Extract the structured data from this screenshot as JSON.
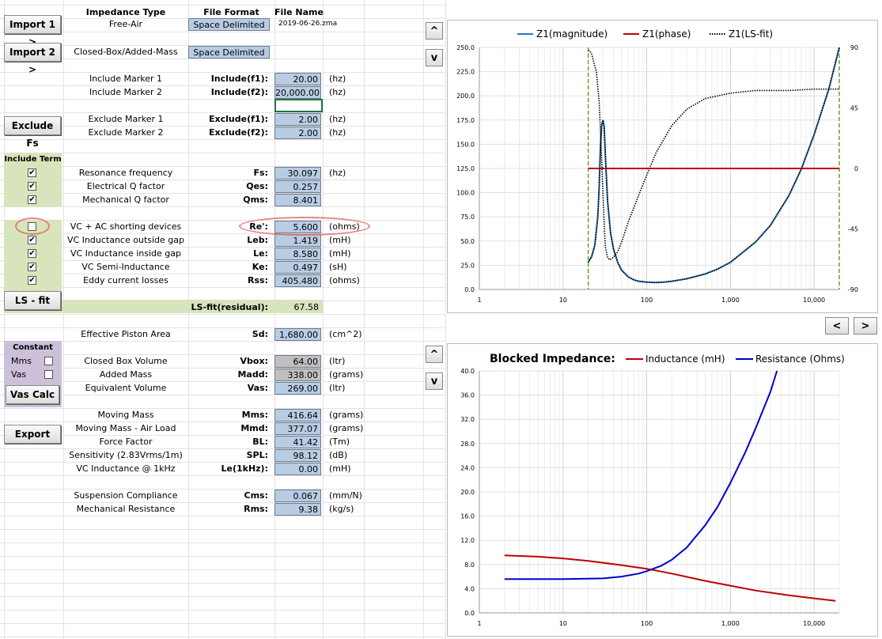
{
  "headers": {
    "impedance_type": "Impedance Type",
    "file_format": "File Format",
    "file_name": "File Name"
  },
  "imports": [
    {
      "button": "Import 1 >",
      "type": "Free-Air",
      "format": "Space Delimited",
      "file": "2019-06-26.zma"
    },
    {
      "button": "Import 2 >",
      "type": "Closed-Box/Added-Mass",
      "format": "Space Delimited",
      "file": ""
    }
  ],
  "include_markers": [
    {
      "desc": "Include Marker 1",
      "label": "Include(f1):",
      "value": "20.00",
      "unit": "(hz)"
    },
    {
      "desc": "Include Marker 2",
      "label": "Include(f2):",
      "value": "20,000.00",
      "unit": "(hz)"
    }
  ],
  "exclude_button": "Exclude Fs",
  "exclude_markers": [
    {
      "desc": "Exclude Marker 1",
      "label": "Exclude(f1):",
      "value": "2.00",
      "unit": "(hz)"
    },
    {
      "desc": "Exclude Marker 2",
      "label": "Exclude(f2):",
      "value": "2.00",
      "unit": "(hz)"
    }
  ],
  "include_term_label": "Include Term",
  "params_a": [
    {
      "checked": true,
      "desc": "Resonance frequency",
      "label": "Fs:",
      "value": "30.097",
      "unit": "(hz)"
    },
    {
      "checked": true,
      "desc": "Electrical Q factor",
      "label": "Qes:",
      "value": "0.257",
      "unit": ""
    },
    {
      "checked": true,
      "desc": "Mechanical Q factor",
      "label": "Qms:",
      "value": "8.401",
      "unit": ""
    }
  ],
  "params_b": [
    {
      "checked": false,
      "desc": "VC + AC shorting devices",
      "label": "Re':",
      "value": "5.600",
      "unit": "(ohms)"
    },
    {
      "checked": true,
      "desc": "VC Inductance outside gap",
      "label": "Leb:",
      "value": "1.419",
      "unit": "(mH)"
    },
    {
      "checked": true,
      "desc": "VC Inductance inside gap",
      "label": "Le:",
      "value": "8.580",
      "unit": "(mH)"
    },
    {
      "checked": true,
      "desc": "VC Semi-Inductance",
      "label": "Ke:",
      "value": "0.497",
      "unit": "(sH)"
    },
    {
      "checked": true,
      "desc": "Eddy current losses",
      "label": "Rss:",
      "value": "405.480",
      "unit": "(ohms)"
    }
  ],
  "lsfit": {
    "button": "LS - fit",
    "label": "LS-fit(residual):",
    "value": "67.58"
  },
  "piston": {
    "desc": "Effective Piston Area",
    "label": "Sd:",
    "value": "1,680.00",
    "unit": "(cm^2)"
  },
  "constant": {
    "title": "Constant",
    "mms": "Mms",
    "vas": "Vas",
    "button": "Vas Calc"
  },
  "box_params": [
    {
      "desc": "Closed Box Volume",
      "label": "Vbox:",
      "value": "64.00",
      "unit": "(ltr)",
      "gray": true
    },
    {
      "desc": "Added Mass",
      "label": "Madd:",
      "value": "338.00",
      "unit": "(grams)",
      "gray": true
    },
    {
      "desc": "Equivalent Volume",
      "label": "Vas:",
      "value": "269.00",
      "unit": "(ltr)",
      "gray": false
    }
  ],
  "export_button": "Export",
  "results": [
    {
      "desc": "Moving Mass",
      "label": "Mms:",
      "value": "416.64",
      "unit": "(grams)"
    },
    {
      "desc": "Moving Mass - Air Load",
      "label": "Mmd:",
      "value": "377.07",
      "unit": "(grams)"
    },
    {
      "desc": "Force Factor",
      "label": "BL:",
      "value": "41.42",
      "unit": "(Tm)"
    },
    {
      "desc": "Sensitivity (2.83Vrms/1m)",
      "label": "SPL:",
      "value": "98.12",
      "unit": "(dB)"
    },
    {
      "desc": "VC Inductance @ 1kHz",
      "label": "Le(1kHz):",
      "value": "0.00",
      "unit": "(mH)"
    }
  ],
  "results2": [
    {
      "desc": "Suspension Compliance",
      "label": "Cms:",
      "value": "0.067",
      "unit": "(mm/N)"
    },
    {
      "desc": "Mechanical Resistance",
      "label": "Rms:",
      "value": "9.38",
      "unit": "(kg/s)"
    }
  ],
  "nav": {
    "up": "^",
    "down": "v",
    "prev": "<",
    "next": ">"
  },
  "chart_data": [
    {
      "type": "line",
      "title": "",
      "legend": [
        "Z1(magnitude)",
        "Z1(phase)",
        "Z1(LS-fit)"
      ],
      "legend_position": "top",
      "x_log": true,
      "xlim": [
        1,
        20000
      ],
      "x_ticks": [
        "1",
        "10",
        "100",
        "1,000",
        "10,000"
      ],
      "ylim": [
        0,
        250
      ],
      "y_ticks": [
        "0.0",
        "25.0",
        "50.0",
        "75.0",
        "100.0",
        "125.0",
        "150.0",
        "175.0",
        "200.0",
        "225.0",
        "250.0"
      ],
      "y2lim": [
        -90,
        90
      ],
      "y2_ticks": [
        "90",
        "45",
        "0",
        "-45",
        "-90"
      ],
      "markers_x": [
        20,
        20000
      ],
      "series": [
        {
          "name": "Z1(magnitude)",
          "color": "#2e75b6",
          "x": [
            20,
            22,
            24,
            26,
            27,
            28,
            29,
            30,
            31,
            32,
            34,
            37,
            40,
            45,
            50,
            60,
            70,
            80,
            100,
            130,
            160,
            200,
            300,
            500,
            700,
            1000,
            2000,
            3000,
            5000,
            7000,
            10000,
            15000,
            20000
          ],
          "y": [
            28,
            34,
            46,
            75,
            105,
            148,
            170,
            175,
            168,
            140,
            92,
            58,
            42,
            28,
            20,
            13,
            10,
            8.5,
            7.5,
            7.2,
            7.6,
            8.5,
            11,
            16,
            21,
            28,
            49,
            66,
            97,
            124,
            160,
            207,
            250
          ]
        },
        {
          "name": "Z1(phase)",
          "color": "#c00000",
          "x": [
            20,
            20000
          ],
          "y": [
            0,
            0
          ],
          "y_axis": "right"
        },
        {
          "name": "Z1(LS-fit)",
          "color": "#000000",
          "x": [
            20,
            22,
            24,
            26,
            27,
            28,
            29,
            30,
            31,
            32,
            34,
            37,
            40,
            45,
            50,
            60,
            70,
            80,
            100,
            130,
            160,
            200,
            300,
            500,
            700,
            1000,
            2000,
            3000,
            5000,
            7000,
            10000,
            15000,
            20000
          ],
          "y": [
            28,
            34,
            46,
            75,
            105,
            148,
            170,
            175,
            168,
            140,
            92,
            58,
            42,
            28,
            20,
            13,
            10,
            8.5,
            7.5,
            7.2,
            7.6,
            8.5,
            11,
            16,
            21,
            28,
            49,
            66,
            97,
            124,
            160,
            207,
            250
          ]
        },
        {
          "name": "Z1(LS-fit) phase",
          "color": "#000000",
          "x": [
            20,
            21,
            22,
            23,
            25,
            27,
            29,
            30,
            31,
            32,
            34,
            36,
            40,
            45,
            50,
            60,
            80,
            100,
            130,
            200,
            300,
            500,
            1000,
            2000,
            5000,
            10000,
            20000
          ],
          "y": [
            88,
            87,
            85,
            80,
            72,
            50,
            5,
            -20,
            -40,
            -58,
            -66,
            -68,
            -66,
            -62,
            -55,
            -40,
            -20,
            -5,
            12,
            32,
            44,
            52,
            56,
            58,
            58,
            59,
            59
          ],
          "y_axis": "right"
        }
      ]
    },
    {
      "type": "line",
      "title": "Blocked Impedance:",
      "legend": [
        "Inductance (mH)",
        "Resistance (Ohms)"
      ],
      "legend_position": "top",
      "x_log": true,
      "xlim": [
        1,
        20000
      ],
      "x_ticks": [
        "1",
        "10",
        "100",
        "1,000",
        "10,000"
      ],
      "ylim": [
        0,
        40
      ],
      "y_ticks": [
        "0.0",
        "4.0",
        "8.0",
        "12.0",
        "16.0",
        "20.0",
        "24.0",
        "28.0",
        "32.0",
        "36.0",
        "40.0"
      ],
      "series": [
        {
          "name": "Inductance (mH)",
          "color": "#c00000",
          "x": [
            2,
            5,
            10,
            20,
            50,
            100,
            200,
            500,
            1000,
            2000,
            5000,
            10000,
            18000
          ],
          "y": [
            9.5,
            9.3,
            9.0,
            8.6,
            7.9,
            7.3,
            6.5,
            5.3,
            4.5,
            3.7,
            2.9,
            2.4,
            2.0
          ]
        },
        {
          "name": "Resistance (Ohms)",
          "color": "#0000cc",
          "x": [
            2,
            10,
            30,
            50,
            80,
            100,
            150,
            200,
            300,
            500,
            700,
            1000,
            1500,
            2000,
            3000,
            3600
          ],
          "y": [
            5.6,
            5.6,
            5.7,
            6.0,
            6.5,
            6.9,
            7.8,
            8.8,
            10.8,
            14.5,
            17.5,
            21.5,
            26.5,
            30.5,
            36.5,
            40
          ]
        }
      ]
    }
  ]
}
